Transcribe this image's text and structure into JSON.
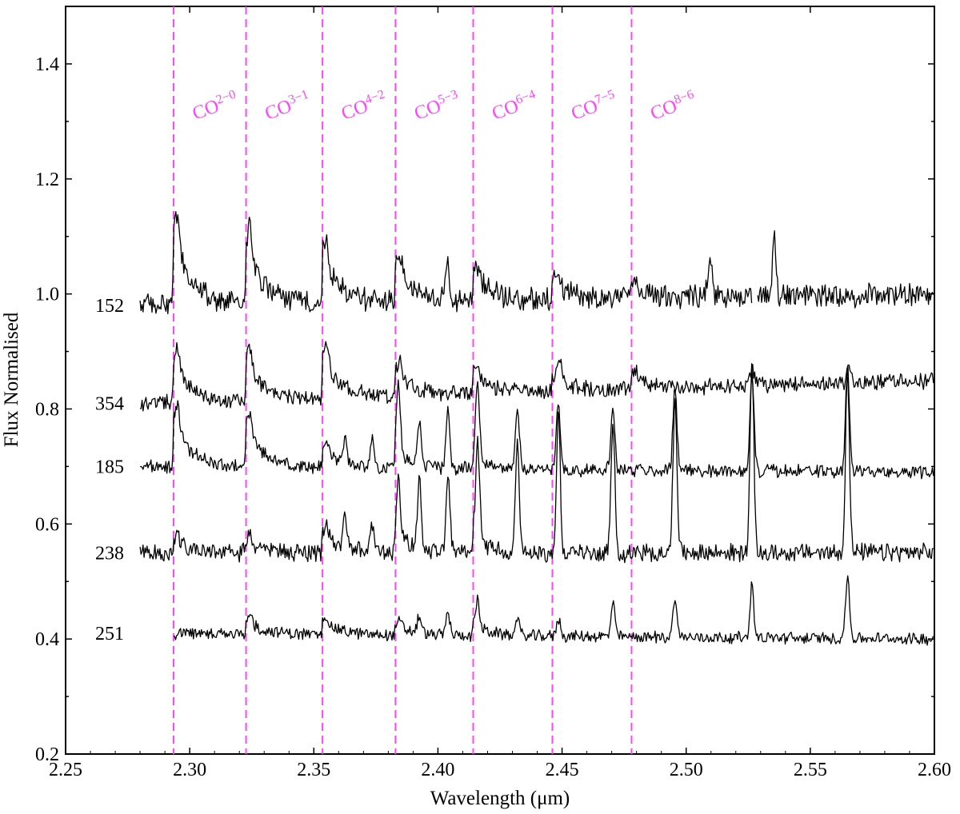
{
  "chart_data": {
    "type": "line",
    "title": "",
    "xlabel": "Wavelength (μm)",
    "ylabel": "Flux Normalised",
    "xlim": [
      2.25,
      2.6
    ],
    "ylim": [
      0.2,
      1.5
    ],
    "xticks": [
      "2.25",
      "2.30",
      "2.35",
      "2.40",
      "2.45",
      "2.50",
      "2.55",
      "2.60"
    ],
    "yticks": [
      "0.2",
      "0.4",
      "0.6",
      "0.8",
      "1.0",
      "1.2",
      "1.4"
    ],
    "grid": false,
    "line_color": "#000000",
    "marker_color": "#ff44ff",
    "co_lines": [
      {
        "label": "CO",
        "sub": "2−0",
        "x": 2.2935
      },
      {
        "label": "CO",
        "sub": "3−1",
        "x": 2.3227
      },
      {
        "label": "CO",
        "sub": "4−2",
        "x": 2.3535
      },
      {
        "label": "CO",
        "sub": "5−3",
        "x": 2.3829
      },
      {
        "label": "CO",
        "sub": "6−4",
        "x": 2.4142
      },
      {
        "label": "CO",
        "sub": "7−5",
        "x": 2.4461
      },
      {
        "label": "CO",
        "sub": "8−6",
        "x": 2.478
      }
    ],
    "series": [
      {
        "name": "152",
        "start": 2.28,
        "base_left": 0.98,
        "base_right": 1.0,
        "noise": 0.018,
        "co_bandheads": [
          {
            "x": 2.2935,
            "amp": 0.2
          },
          {
            "x": 2.3227,
            "amp": 0.17
          },
          {
            "x": 2.3535,
            "amp": 0.14
          },
          {
            "x": 2.3829,
            "amp": 0.11
          },
          {
            "x": 2.4142,
            "amp": 0.08
          },
          {
            "x": 2.4461,
            "amp": 0.06
          },
          {
            "x": 2.478,
            "amp": 0.04
          }
        ],
        "emission_lines": [
          {
            "x": 2.4035,
            "amp": 0.07
          },
          {
            "x": 2.5095,
            "amp": 0.07
          },
          {
            "x": 2.5355,
            "amp": 0.1
          }
        ],
        "gaps": [
          [
            2.5265,
            2.5285
          ]
        ]
      },
      {
        "name": "354",
        "start": 2.28,
        "base_left": 0.81,
        "base_right": 0.85,
        "noise": 0.012,
        "co_bandheads": [
          {
            "x": 2.2935,
            "amp": 0.12
          },
          {
            "x": 2.3227,
            "amp": 0.12
          },
          {
            "x": 2.3535,
            "amp": 0.12
          },
          {
            "x": 2.3829,
            "amp": 0.08
          },
          {
            "x": 2.4142,
            "amp": 0.06
          },
          {
            "x": 2.4461,
            "amp": 0.04
          },
          {
            "x": 2.478,
            "amp": 0.04
          }
        ],
        "emission_lines": [
          {
            "x": 2.4495,
            "amp": 0.04
          },
          {
            "x": 2.5265,
            "amp": 0.03
          },
          {
            "x": 2.5655,
            "amp": 0.03
          }
        ],
        "gaps": []
      },
      {
        "name": "185",
        "start": 2.28,
        "base_left": 0.7,
        "base_right": 0.69,
        "noise": 0.01,
        "co_bandheads": [
          {
            "x": 2.2935,
            "amp": 0.14
          },
          {
            "x": 2.3227,
            "amp": 0.12
          },
          {
            "x": 2.3535,
            "amp": 0.06
          },
          {
            "x": 2.3829,
            "amp": 0.05
          },
          {
            "x": 2.4142,
            "amp": 0.04
          }
        ],
        "emission_lines": [
          {
            "x": 2.3625,
            "amp": 0.04
          },
          {
            "x": 2.3735,
            "amp": 0.05
          },
          {
            "x": 2.384,
            "amp": 0.11
          },
          {
            "x": 2.3925,
            "amp": 0.08
          },
          {
            "x": 2.404,
            "amp": 0.1
          },
          {
            "x": 2.416,
            "amp": 0.12
          },
          {
            "x": 2.432,
            "amp": 0.11
          },
          {
            "x": 2.4485,
            "amp": 0.11
          },
          {
            "x": 2.4705,
            "amp": 0.11
          },
          {
            "x": 2.4955,
            "amp": 0.15
          },
          {
            "x": 2.5265,
            "amp": 0.17
          },
          {
            "x": 2.565,
            "amp": 0.18
          }
        ],
        "gaps": []
      },
      {
        "name": "238",
        "start": 2.28,
        "base_left": 0.55,
        "base_right": 0.55,
        "noise": 0.014,
        "co_bandheads": [
          {
            "x": 2.2935,
            "amp": 0.04
          },
          {
            "x": 2.3227,
            "amp": 0.04
          },
          {
            "x": 2.3535,
            "amp": 0.06
          },
          {
            "x": 2.3829,
            "amp": 0.06
          },
          {
            "x": 2.4142,
            "amp": 0.05
          }
        ],
        "emission_lines": [
          {
            "x": 2.3625,
            "amp": 0.05
          },
          {
            "x": 2.3735,
            "amp": 0.05
          },
          {
            "x": 2.384,
            "amp": 0.08
          },
          {
            "x": 2.3925,
            "amp": 0.12
          },
          {
            "x": 2.404,
            "amp": 0.13
          },
          {
            "x": 2.416,
            "amp": 0.16
          },
          {
            "x": 2.432,
            "amp": 0.18
          },
          {
            "x": 2.4485,
            "amp": 0.24
          },
          {
            "x": 2.4705,
            "amp": 0.22
          },
          {
            "x": 2.4955,
            "amp": 0.28
          },
          {
            "x": 2.5265,
            "amp": 0.32
          },
          {
            "x": 2.565,
            "amp": 0.32
          }
        ],
        "gaps": []
      },
      {
        "name": "251",
        "start": 2.2935,
        "base_left": 0.41,
        "base_right": 0.4,
        "noise": 0.009,
        "co_bandheads": [
          {
            "x": 2.3227,
            "amp": 0.04
          },
          {
            "x": 2.3535,
            "amp": 0.04
          },
          {
            "x": 2.3829,
            "amp": 0.03
          },
          {
            "x": 2.4142,
            "amp": 0.03
          }
        ],
        "emission_lines": [
          {
            "x": 2.3925,
            "amp": 0.03
          },
          {
            "x": 2.404,
            "amp": 0.04
          },
          {
            "x": 2.416,
            "amp": 0.04
          },
          {
            "x": 2.432,
            "amp": 0.03
          },
          {
            "x": 2.4485,
            "amp": 0.03
          },
          {
            "x": 2.4705,
            "amp": 0.06
          },
          {
            "x": 2.4955,
            "amp": 0.07
          },
          {
            "x": 2.5265,
            "amp": 0.09
          },
          {
            "x": 2.565,
            "amp": 0.11
          }
        ],
        "gaps": []
      }
    ]
  }
}
